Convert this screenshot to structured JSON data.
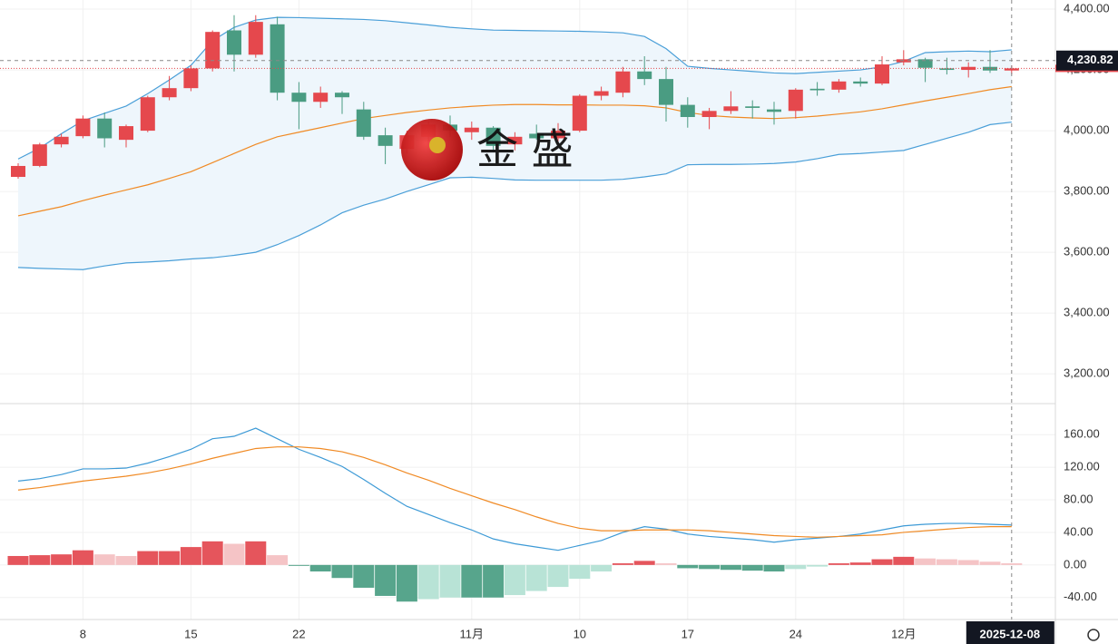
{
  "chart_data": [
    {
      "type": "candlestick",
      "categories": [
        null,
        null,
        null,
        "8",
        null,
        null,
        null,
        null,
        "15",
        null,
        null,
        null,
        null,
        "22",
        null,
        null,
        null,
        null,
        null,
        null,
        null,
        "11月",
        null,
        null,
        null,
        null,
        "10",
        null,
        null,
        null,
        null,
        "17",
        null,
        null,
        null,
        null,
        "24",
        null,
        null,
        null,
        null,
        "12月",
        null,
        null,
        null,
        null,
        null
      ],
      "open": [
        3848,
        3884,
        3955,
        3982,
        4040,
        3970,
        4000,
        4110,
        4140,
        4205,
        4330,
        4250,
        4350,
        4125,
        4095,
        4125,
        4070,
        3985,
        3940,
        3980,
        4020,
        3995,
        4010,
        3955,
        3990,
        3975,
        4000,
        4115,
        4125,
        4195,
        4170,
        4085,
        4045,
        4065,
        4080,
        4070,
        4065,
        4138,
        4135,
        4162,
        4155,
        4225,
        4235,
        4205,
        4200,
        4210,
        4198
      ],
      "high": [
        3893,
        3960,
        3990,
        4050,
        4060,
        4020,
        4115,
        4180,
        4215,
        4330,
        4380,
        4380,
        4375,
        4160,
        4145,
        4130,
        4095,
        4010,
        4000,
        4030,
        4050,
        4030,
        4015,
        3995,
        4020,
        4025,
        4120,
        4145,
        4210,
        4245,
        4210,
        4110,
        4075,
        4130,
        4100,
        4095,
        4140,
        4160,
        4170,
        4175,
        4245,
        4265,
        4240,
        4240,
        4225,
        4265,
        4215
      ],
      "low": [
        3842,
        3880,
        3945,
        3975,
        3945,
        3945,
        3995,
        4100,
        4130,
        4195,
        4195,
        4240,
        4100,
        4005,
        4075,
        4055,
        3970,
        3890,
        3925,
        3965,
        3980,
        3970,
        3930,
        3935,
        3970,
        3965,
        3995,
        4100,
        4110,
        4150,
        4030,
        4010,
        4005,
        4055,
        4040,
        4020,
        4040,
        4115,
        4125,
        4145,
        4150,
        4215,
        4160,
        4185,
        4175,
        4190,
        4185
      ],
      "close": [
        3884,
        3955,
        3980,
        4040,
        3975,
        4015,
        4110,
        4140,
        4205,
        4325,
        4250,
        4358,
        4125,
        4095,
        4125,
        4110,
        3980,
        3950,
        3985,
        4020,
        4000,
        4010,
        3950,
        3980,
        3975,
        4000,
        4115,
        4130,
        4195,
        4170,
        4085,
        4045,
        4065,
        4080,
        4075,
        4062,
        4135,
        4133,
        4162,
        4155,
        4218,
        4235,
        4207,
        4200,
        4210,
        4198,
        4205
      ],
      "up_color": "#e5484d",
      "down_color": "#4a9c82",
      "bollinger": {
        "upper": [
          3907,
          3943,
          3990,
          4033,
          4057,
          4081,
          4122,
          4167,
          4215,
          4296,
          4340,
          4364,
          4373,
          4372,
          4370,
          4368,
          4366,
          4362,
          4355,
          4348,
          4340,
          4335,
          4331,
          4330,
          4329,
          4328,
          4327,
          4325,
          4322,
          4310,
          4270,
          4212,
          4205,
          4200,
          4195,
          4190,
          4188,
          4192,
          4196,
          4200,
          4210,
          4228,
          4257,
          4260,
          4262,
          4260,
          4266
        ],
        "middle": [
          3720,
          3735,
          3750,
          3770,
          3788,
          3805,
          3822,
          3843,
          3865,
          3895,
          3925,
          3955,
          3980,
          3995,
          4010,
          4025,
          4040,
          4050,
          4060,
          4068,
          4075,
          4080,
          4084,
          4086,
          4086,
          4085,
          4085,
          4084,
          4084,
          4082,
          4075,
          4060,
          4050,
          4045,
          4042,
          4040,
          4043,
          4048,
          4055,
          4062,
          4072,
          4085,
          4098,
          4110,
          4122,
          4135,
          4145
        ],
        "lower": [
          3550,
          3547,
          3545,
          3543,
          3555,
          3565,
          3568,
          3572,
          3578,
          3582,
          3590,
          3600,
          3625,
          3655,
          3690,
          3730,
          3755,
          3775,
          3800,
          3822,
          3845,
          3847,
          3843,
          3838,
          3837,
          3837,
          3837,
          3837,
          3840,
          3848,
          3858,
          3888,
          3889,
          3889,
          3890,
          3892,
          3897,
          3908,
          3922,
          3925,
          3930,
          3935,
          3955,
          3975,
          3995,
          4020,
          4028
        ],
        "band_color": "#4a9fd8",
        "middle_color": "#f08a24",
        "fill": "#eef6fc"
      },
      "ylim": [
        3105,
        4430
      ],
      "yticks": [
        {
          "value": 3200,
          "label": "3,200.00"
        },
        {
          "value": 3400,
          "label": "3,400.00"
        },
        {
          "value": 3600,
          "label": "3,600.00"
        },
        {
          "value": 3800,
          "label": "3,800.00"
        },
        {
          "value": 4000,
          "label": "4,000.00"
        },
        {
          "value": 4200,
          "label": "4,200.00"
        },
        {
          "value": 4400,
          "label": "4,400.00"
        }
      ],
      "crosshair_price": {
        "value": 4230.82,
        "label": "4,230.82"
      },
      "crosshair_date": "2025-12-08",
      "watermark": "金 盛",
      "grid": true
    },
    {
      "type": "macd",
      "dif": [
        103,
        106,
        111,
        118,
        118,
        119,
        125,
        133,
        142,
        155,
        158,
        168,
        155,
        142,
        132,
        121,
        105,
        88,
        72,
        62,
        52,
        43,
        32,
        26,
        22,
        18,
        24,
        30,
        40,
        47,
        44,
        38,
        35,
        33,
        31,
        28,
        31,
        33,
        35,
        38,
        43,
        48,
        50,
        51,
        51,
        50,
        49
      ],
      "dea": [
        92,
        95,
        99,
        103,
        106,
        109,
        113,
        118,
        124,
        131,
        137,
        143,
        145,
        145,
        143,
        139,
        132,
        123,
        113,
        104,
        94,
        85,
        76,
        68,
        59,
        51,
        45,
        42,
        42,
        43,
        43,
        43,
        42,
        40,
        38,
        36,
        35,
        34,
        35,
        36,
        37,
        40,
        42,
        44,
        46,
        47,
        47
      ],
      "histogram": [
        11,
        12,
        13,
        18,
        13,
        11,
        17,
        17,
        22,
        29,
        26,
        29,
        12,
        -1,
        -8,
        -16,
        -28,
        -38,
        -45,
        -42,
        -40,
        -40,
        -40,
        -37,
        -32,
        -27,
        -17,
        -8,
        2,
        5,
        2,
        -4,
        -5,
        -6,
        -7,
        -8,
        -5,
        -2,
        2,
        3,
        7,
        10,
        8,
        7,
        6,
        4,
        2
      ],
      "dif_color": "#3d9ad6",
      "dea_color": "#f08a24",
      "hist_colors": {
        "up_strong": "#e5555c",
        "up_weak": "#f5c4c6",
        "down_strong": "#57a58c",
        "down_weak": "#b8e3d6"
      },
      "ylim": [
        -67,
        197
      ],
      "yticks": [
        {
          "value": -40,
          "label": "-40.00"
        },
        {
          "value": 0,
          "label": "0.00"
        },
        {
          "value": 40,
          "label": "40.00"
        },
        {
          "value": 80,
          "label": "80.00"
        },
        {
          "value": 120,
          "label": "120.00"
        },
        {
          "value": 160,
          "label": "160.00"
        }
      ],
      "grid": true
    }
  ]
}
